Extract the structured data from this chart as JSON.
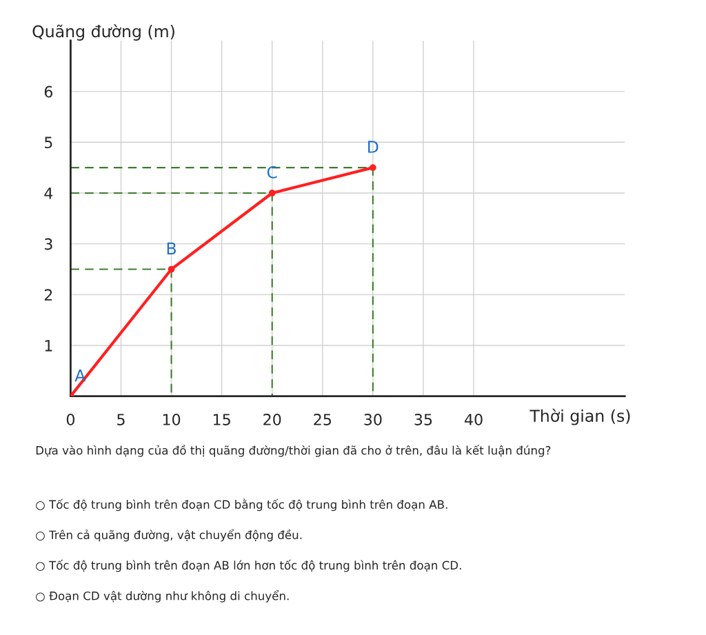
{
  "chart_data": {
    "type": "line",
    "xlabel": "Thời gian (s)",
    "ylabel": "Quãng đường (m)",
    "x": [
      0,
      10,
      20,
      30
    ],
    "series": [
      {
        "color": "#ff2020",
        "values": [
          0,
          2.5,
          4,
          4.5
        ],
        "marker": "circle",
        "line_style": "solid"
      },
      {
        "color": "#3a7d2a",
        "x": [
          0,
          10,
          10
        ],
        "values": [
          2.5,
          2.5,
          0
        ],
        "marker": "none",
        "line_style": "dashed"
      },
      {
        "color": "#3a7d2a",
        "x": [
          0,
          20,
          20
        ],
        "values": [
          4,
          4,
          0
        ],
        "marker": "none",
        "line_style": "dashed"
      },
      {
        "color": "#3a7d2a",
        "x": [
          0,
          30,
          30
        ],
        "values": [
          4.5,
          4.5,
          0
        ],
        "marker": "none",
        "line_style": "dashed"
      }
    ],
    "xlim": [
      0,
      55
    ],
    "ylim": [
      0,
      7
    ],
    "xticks": [
      0,
      5,
      10,
      15,
      20,
      25,
      30,
      35,
      40
    ],
    "yticks": [
      1,
      2,
      3,
      4,
      5,
      6
    ],
    "grid": true,
    "annotations": [
      {
        "text": "A",
        "x": 0,
        "y": 0
      },
      {
        "text": "B",
        "x": 10,
        "y": 2.5
      },
      {
        "text": "C",
        "x": 20,
        "y": 4
      },
      {
        "text": "D",
        "x": 30,
        "y": 4.5
      },
      "Dựa vào hình dạng của đồ thị quãng đường/thời gian đã cho ở trên, đâu là kết luận đúng?",
      "○ Tốc độ trung bình trên đoạn CD bằng tốc độ trung bình trên đoạn AB.",
      "○ Trên cả quãng đường, vật chuyển động đều.",
      "○ Tốc độ trung bình trên đoạn AB lớn hơn tốc độ trung bình trên đoạn CD.",
      "○ Đoạn CD vật dường như không di chuyển."
    ]
  }
}
